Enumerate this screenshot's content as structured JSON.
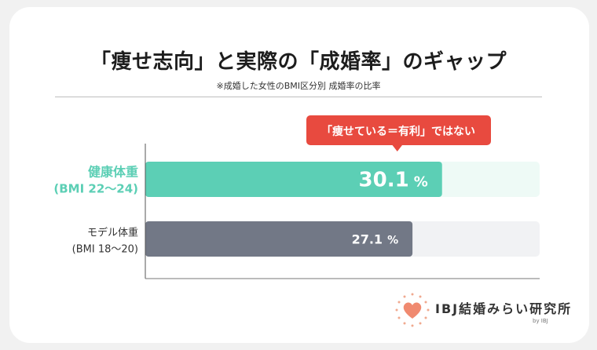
{
  "title": "「痩せ志向」と実際の「成婚率」のギャップ",
  "subtitle": "※成婚した女性のBMI区分別 成婚率の比率",
  "callout": "「痩せている＝有利」ではない",
  "logo": {
    "text": "IBJ結婚みらい研究所",
    "by": "by IBJ"
  },
  "colors": {
    "highlight": "#5ccfb5",
    "highlight_track": "#eefaf6",
    "normal": "#727886",
    "normal_track": "#f1f2f4",
    "callout": "#e84a3f"
  },
  "chart_data": {
    "type": "bar",
    "orientation": "horizontal",
    "title": "「痩せ志向」と実際の「成婚率」のギャップ",
    "subtitle": "※成婚した女性のBMI区分別 成婚率の比率",
    "unit": "%",
    "xlim": [
      0,
      40
    ],
    "categories": [
      {
        "name": "健康体重",
        "range": "(BMI 22〜24)",
        "value": 30.1,
        "value_label": "30.1",
        "highlight": true
      },
      {
        "name": "モデル体重",
        "range": "(BMI 18〜20)",
        "value": 27.1,
        "value_label": "27.1",
        "highlight": false
      }
    ]
  }
}
